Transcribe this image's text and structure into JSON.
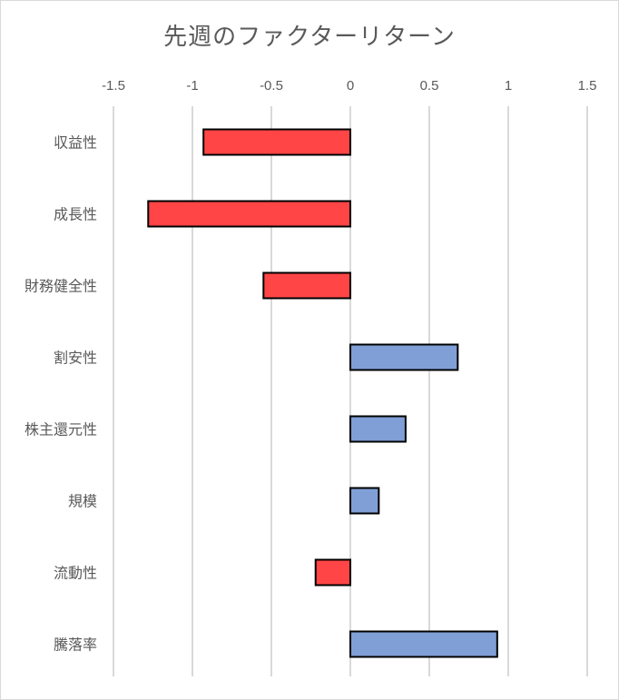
{
  "chart_data": {
    "type": "bar",
    "orientation": "horizontal",
    "title": "先週のファクターリターン",
    "categories": [
      "収益性",
      "成長性",
      "財務健全性",
      "割安性",
      "株主還元性",
      "規模",
      "流動性",
      "騰落率"
    ],
    "values": [
      -0.93,
      -1.28,
      -0.55,
      0.68,
      0.35,
      0.18,
      -0.22,
      0.93
    ],
    "xlim": [
      -1.5,
      1.5
    ],
    "xticks": [
      -1.5,
      -1,
      -0.5,
      0,
      0.5,
      1,
      1.5
    ],
    "xtick_labels": [
      "-1.5",
      "-1",
      "-0.5",
      "0",
      "0.5",
      "1",
      "1.5"
    ],
    "x_axis_position": "top",
    "grid": true,
    "legend": "none",
    "colors": {
      "negative": "#ff4545",
      "positive": "#7f9fd6",
      "bar_border": "#000000",
      "grid": "#d9d9d9",
      "text": "#595959"
    }
  }
}
